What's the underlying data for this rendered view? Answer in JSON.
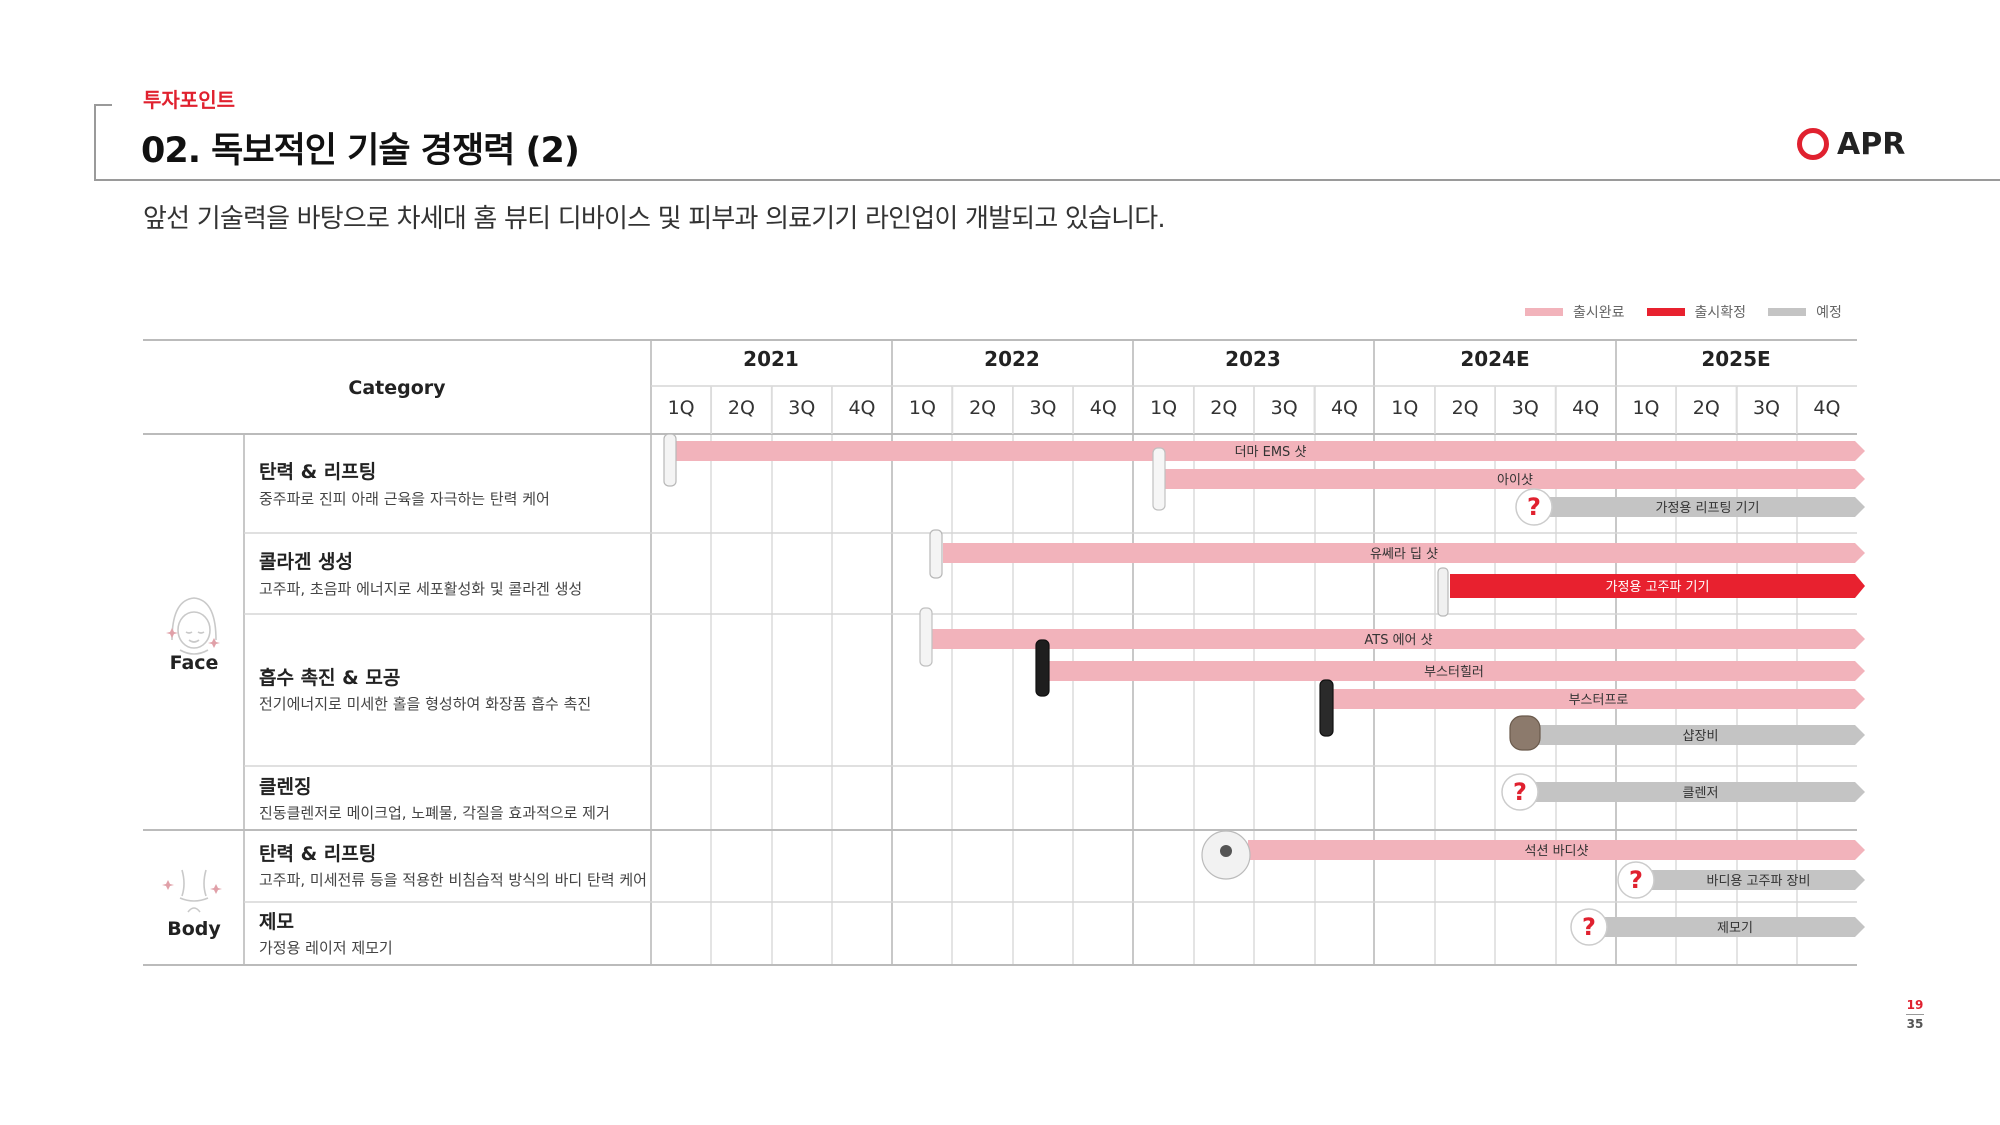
{
  "header": {
    "section_label": "투자포인트",
    "title": "02. 독보적인 기술 경쟁력 (2)",
    "logo_text": "APR"
  },
  "subtitle": "앞선 기술력을 바탕으로 차세대 홈 뷰티 디바이스 및 피부과 의료기기 라인업이 개발되고 있습니다.",
  "legend": [
    {
      "label": "출시완료",
      "color": "#f2b3bb"
    },
    {
      "label": "출시확정",
      "color": "#e8212f"
    },
    {
      "label": "예정",
      "color": "#c4c4c4"
    }
  ],
  "table": {
    "category_header": "Category",
    "years": [
      "2021",
      "2022",
      "2023",
      "2024E",
      "2025E"
    ],
    "quarters": [
      "1Q",
      "2Q",
      "3Q",
      "4Q"
    ],
    "groups": [
      {
        "name": "Face",
        "icon": "face-icon"
      },
      {
        "name": "Body",
        "icon": "body-icon"
      }
    ],
    "rows": [
      {
        "title": "탄력 & 리프팅",
        "desc": "중주파로 진피 아래 근육을 자극하는 탄력 케어"
      },
      {
        "title": "콜라겐 생성",
        "desc": "고주파, 초음파 에너지로 세포활성화 및 콜라겐 생성"
      },
      {
        "title": "흡수 촉진 & 모공",
        "desc": "전기에너지로 미세한 홀을 형성하여 화장품 흡수 촉진"
      },
      {
        "title": "클렌징",
        "desc": "진동클렌저로 메이크업, 노폐물, 각질을 효과적으로 제거"
      },
      {
        "title": "탄력 & 리프팅",
        "desc": "고주파, 미세전류 등을 적용한 비침습적 방식의 바디 탄력 케어"
      },
      {
        "title": "제모",
        "desc": "가정용 레이저 제모기"
      }
    ]
  },
  "products": [
    {
      "name": "더마 EMS 샷",
      "status": "출시완료",
      "start": "2021 1Q"
    },
    {
      "name": "아이샷",
      "status": "출시완료",
      "start": "2022 4Q"
    },
    {
      "name": "가정용 리프팅 기기",
      "status": "예정",
      "start": "2024E 3Q",
      "question": "?"
    },
    {
      "name": "유쎄라 딥 샷",
      "status": "출시완료",
      "start": "2022 1Q"
    },
    {
      "name": "가정용 고주파 기기",
      "status": "출시확정",
      "start": "2024E 2Q"
    },
    {
      "name": "ATS 에어 샷",
      "status": "출시완료",
      "start": "2022 1Q"
    },
    {
      "name": "부스터힐러",
      "status": "출시완료",
      "start": "2022 3Q"
    },
    {
      "name": "부스터프로",
      "status": "출시완료",
      "start": "2023 3Q"
    },
    {
      "name": "샵장비",
      "status": "예정",
      "start": "2024E 3Q"
    },
    {
      "name": "클렌저",
      "status": "예정",
      "start": "2024E 3Q",
      "question": "?"
    },
    {
      "name": "석션 바디샷",
      "status": "출시완료",
      "start": "2023 2Q"
    },
    {
      "name": "바디용 고주파 장비",
      "status": "예정",
      "start": "2025E 1Q",
      "question": "?"
    },
    {
      "name": "제모기",
      "status": "예정",
      "start": "2024E 4Q",
      "question": "?"
    }
  ],
  "page": {
    "current": "19",
    "total": "35"
  }
}
